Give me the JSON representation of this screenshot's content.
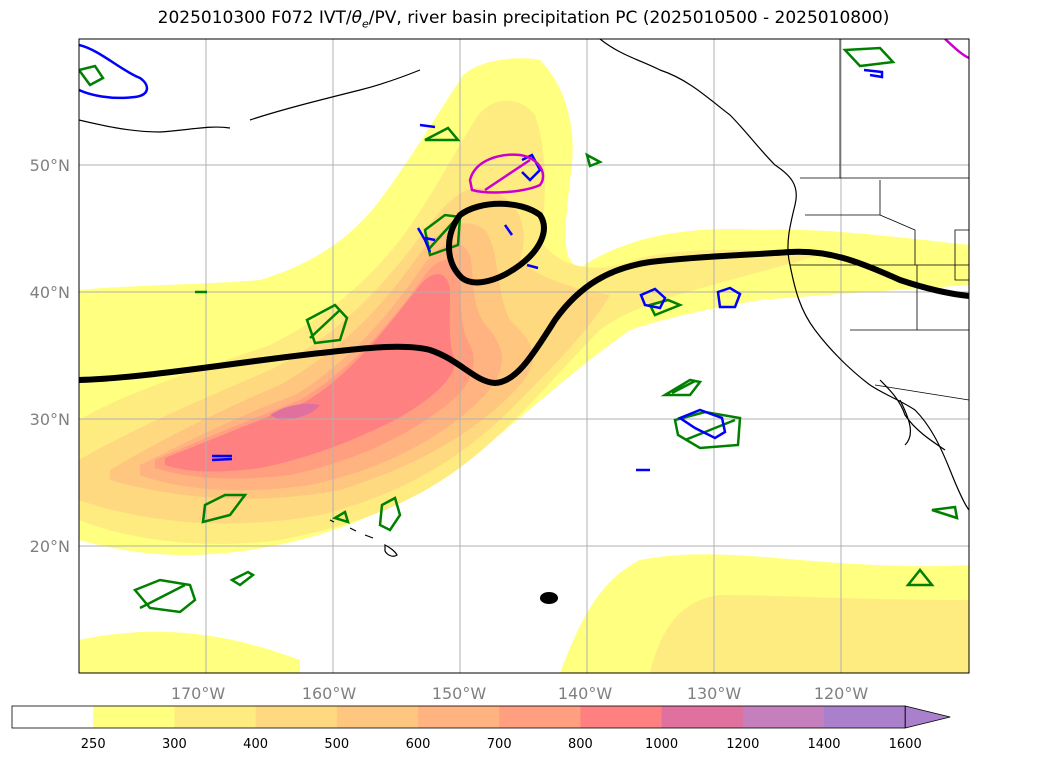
{
  "title": {
    "prefix": "2025010300 F072 IVT/",
    "theta": "θ",
    "theta_sub": "e",
    "suffix": "/PV, river basin precipitation PC (2025010500 - 2025010800)"
  },
  "axes": {
    "lon_labels": [
      "170°W",
      "160°W",
      "150°W",
      "140°W",
      "130°W",
      "120°W"
    ],
    "lat_labels": [
      "50°N",
      "40°N",
      "30°N",
      "20°N"
    ],
    "tick_color": "#808080",
    "grid": true
  },
  "colorbar": {
    "levels": [
      "250",
      "300",
      "400",
      "500",
      "600",
      "700",
      "800",
      "1000",
      "1200",
      "1400",
      "1600"
    ],
    "colors": [
      "#ffffff",
      "#ffff80",
      "#ffec80",
      "#ffd980",
      "#ffc680",
      "#ffb380",
      "#ff9f80",
      "#ff8080",
      "#e0709e",
      "#c57fbd",
      "#aa80cc"
    ],
    "extend": "max"
  },
  "chart_data": {
    "type": "map",
    "fill_field": "IVT",
    "fill_levels": [
      250,
      300,
      400,
      500,
      600,
      700,
      800,
      1000,
      1200,
      1400,
      1600
    ],
    "contours": [
      {
        "field": "theta_e",
        "color": "#000000"
      },
      {
        "field": "PV",
        "color": "#0000ff"
      },
      {
        "field": "PV",
        "color": "#008000"
      },
      {
        "field": "PV",
        "color": "#cc00cc"
      }
    ],
    "lon_ticks": [
      -170,
      -160,
      -150,
      -140,
      -130,
      -120
    ],
    "lat_ticks": [
      50,
      40,
      30,
      20
    ]
  }
}
